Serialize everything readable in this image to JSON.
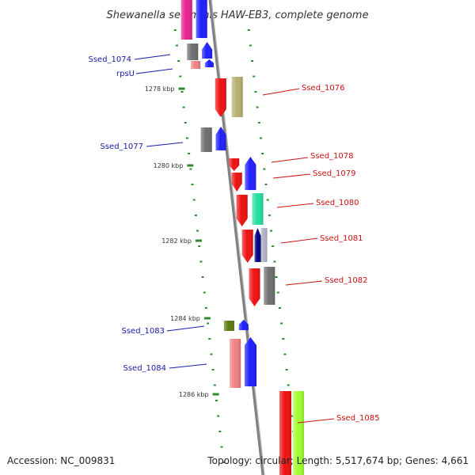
{
  "title": "Shewanella sediminis HAW-EB3, complete genome",
  "accession": "Accession: NC_009831",
  "summary": "Topology: circular; Length: 5,517,674 bp; Genes: 4,661",
  "colors": {
    "left_label": "#1a1aaa",
    "right_label": "#cc1111",
    "tick": "#2e8b2e",
    "backbone": "#808080"
  },
  "ticks": [
    {
      "label": "1278 kbp"
    },
    {
      "label": "1280 kbp"
    },
    {
      "label": "1282 kbp"
    },
    {
      "label": "1284 kbp"
    },
    {
      "label": "1286 kbp"
    }
  ],
  "genes": [
    {
      "name": "",
      "color": "#e8208a"
    },
    {
      "name": "",
      "color": "#1f1fff"
    },
    {
      "name": "Ssed_1074",
      "color": "#6e6e6e"
    },
    {
      "name": "",
      "color": "#1f1fff"
    },
    {
      "name": "rpsU",
      "color": "#f08080"
    },
    {
      "name": "",
      "color": "#1f1fff"
    },
    {
      "name": "Ssed_1076",
      "color": "#ee1111"
    },
    {
      "name": "",
      "color": "#b8b070"
    },
    {
      "name": "Ssed_1077",
      "color": "#6e6e6e"
    },
    {
      "name": "",
      "color": "#1f1fff"
    },
    {
      "name": "Ssed_1078",
      "color": "#ee1111"
    },
    {
      "name": "",
      "color": "#1f1fff"
    },
    {
      "name": "Ssed_1079",
      "color": "#ee1111"
    },
    {
      "name": "Ssed_1080",
      "color": "#ee1111"
    },
    {
      "name": "",
      "color": "#20e0a0"
    },
    {
      "name": "Ssed_1081",
      "color": "#ee1111"
    },
    {
      "name": "",
      "color": "#000080"
    },
    {
      "name": "",
      "color": "#b0b0c8"
    },
    {
      "name": "Ssed_1082",
      "color": "#ee1111"
    },
    {
      "name": "",
      "color": "#6e6e6e"
    },
    {
      "name": "Ssed_1083",
      "color": "#5a7a10"
    },
    {
      "name": "",
      "color": "#1f1fff"
    },
    {
      "name": "Ssed_1084",
      "color": "#f08080"
    },
    {
      "name": "",
      "color": "#1f1fff"
    },
    {
      "name": "Ssed_1085",
      "color": "#ee1111"
    },
    {
      "name": "",
      "color": "#a0ff30"
    }
  ]
}
